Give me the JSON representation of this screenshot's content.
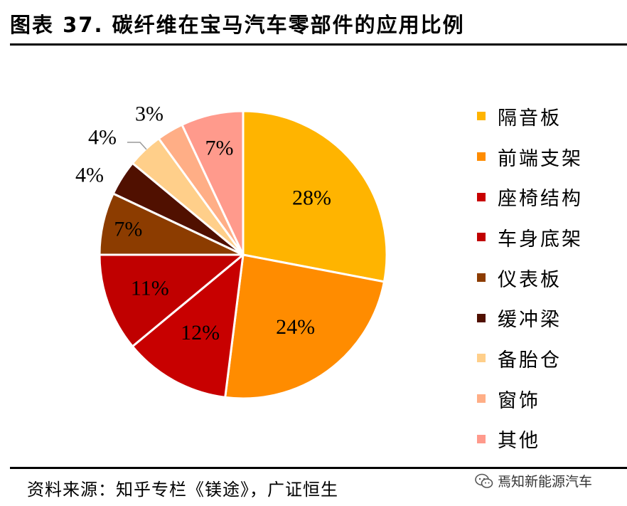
{
  "title": "图表 37. 碳纤维在宝马汽车零部件的应用比例",
  "chart_data": {
    "type": "pie",
    "title": "",
    "legend_position": "right",
    "slices": [
      {
        "label": "隔音板",
        "value": 28,
        "display": "28%",
        "color": "#FFB400"
      },
      {
        "label": "前端支架",
        "value": 24,
        "display": "24%",
        "color": "#FF8C00"
      },
      {
        "label": "座椅结构",
        "value": 12,
        "display": "12%",
        "color": "#C80000"
      },
      {
        "label": "车身底架",
        "value": 11,
        "display": "11%",
        "color": "#C00000"
      },
      {
        "label": "仪表板",
        "value": 7,
        "display": "7%",
        "color": "#8C3C00"
      },
      {
        "label": "缓冲梁",
        "value": 4,
        "display": "4%",
        "color": "#501000"
      },
      {
        "label": "备胎仓",
        "value": 4,
        "display": "4%",
        "color": "#FFCF8A"
      },
      {
        "label": "窗饰",
        "value": 3,
        "display": "3%",
        "color": "#FFAE86"
      },
      {
        "label": "其他",
        "value": 7,
        "display": "7%",
        "color": "#FF9A8C"
      }
    ]
  },
  "footer": {
    "source": "资料来源：知乎专栏《镁途》，广证恒生",
    "watermark": "焉知新能源汽车",
    "watermark_icon": "wechat-icon"
  }
}
